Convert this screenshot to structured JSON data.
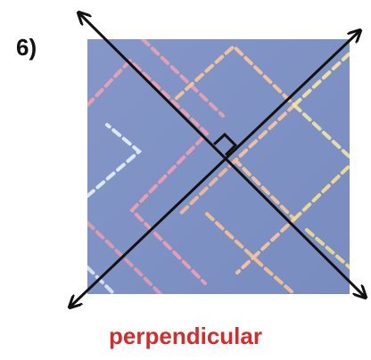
{
  "problem": {
    "number_label": "6)"
  },
  "answer": {
    "text": "perpendicular",
    "color": "#d52b2b"
  },
  "figure": {
    "description_icon": "quilted-fabric-swatch",
    "fabric_color": "#7f93c4",
    "line_color": "#111111",
    "stitch_colors": [
      "#f2a0ae",
      "#f6c49a",
      "#f4e39a",
      "#dfe8f5"
    ],
    "right_angle_marker": true
  }
}
